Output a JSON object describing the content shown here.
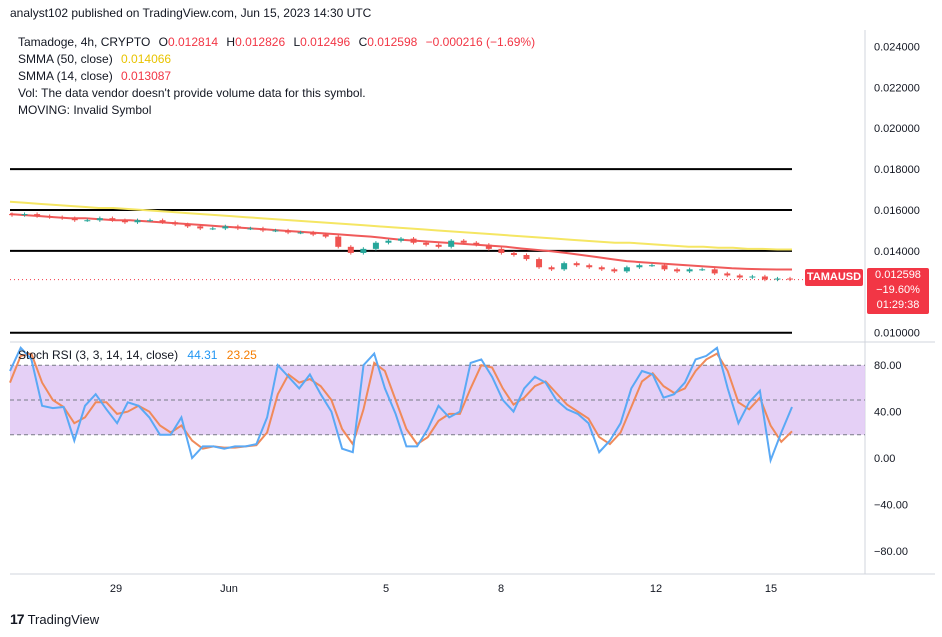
{
  "header": {
    "published": "analyst102 published on TradingView.com, Jun 15, 2023 14:30 UTC"
  },
  "legend": {
    "symbol": "Tamadoge, 4h, CRYPTO",
    "o_label": "O",
    "o": "0.012814",
    "h_label": "H",
    "h": "0.012826",
    "l_label": "L",
    "l": "0.012496",
    "c_label": "C",
    "c": "0.012598",
    "change": "−0.000216 (−1.69%)",
    "sma50_label": "SMMA (50, close)",
    "sma50_value": "0.014066",
    "sma14_label": "SMMA (14, close)",
    "sma14_value": "0.013087",
    "vol_note": "Vol: The data vendor doesn't provide volume data for this symbol.",
    "moving_note": "MOVING: Invalid Symbol"
  },
  "price_tag": {
    "symbol": "TAMAUSD",
    "price": "0.012598",
    "change_pct": "−19.60%",
    "countdown": "01:29:38"
  },
  "rsi_legend": {
    "label": "Stoch RSI (3, 3, 14, 14, close)",
    "k": "44.31",
    "d": "23.25"
  },
  "footer": {
    "brand": "TradingView",
    "logo": "17"
  },
  "colors": {
    "sma50": "#f5e663",
    "sma14": "#f05a5a",
    "up": "#26a69a",
    "down": "#ef5350",
    "stoch_k": "#5aa9f5",
    "stoch_d": "#f08a5a",
    "band": "#e1c8f5"
  },
  "chart_data": [
    {
      "type": "candlestick",
      "y_ticks": [
        "0.024000",
        "0.022000",
        "0.020000",
        "0.018000",
        "0.016000",
        "0.014000",
        "0.010000"
      ],
      "x_ticks": [
        "29",
        "Jun",
        "5",
        "8",
        "12",
        "15"
      ],
      "ylim": [
        0.0094,
        0.0248
      ],
      "horizontal_levels": [
        0.018,
        0.016,
        0.014,
        0.01
      ],
      "close": [
        0.01575,
        0.0158,
        0.0157,
        0.01565,
        0.0156,
        0.0155,
        0.0155,
        0.0156,
        0.0155,
        0.0154,
        0.0155,
        0.0155,
        0.0154,
        0.0153,
        0.0152,
        0.0151,
        0.0151,
        0.0152,
        0.0151,
        0.0151,
        0.015,
        0.015,
        0.0149,
        0.0149,
        0.0148,
        0.0147,
        0.0142,
        0.0139,
        0.0141,
        0.0144,
        0.0145,
        0.0146,
        0.0144,
        0.0143,
        0.0142,
        0.0145,
        0.0144,
        0.0143,
        0.0141,
        0.0139,
        0.0138,
        0.0136,
        0.0132,
        0.0131,
        0.0134,
        0.0133,
        0.0132,
        0.0131,
        0.013,
        0.0132,
        0.0133,
        0.0133,
        0.0131,
        0.013,
        0.0131,
        0.0131,
        0.0129,
        0.0128,
        0.0127,
        0.01275,
        0.0126,
        0.01265,
        0.0126
      ],
      "sma50": [
        0.0164,
        0.01635,
        0.0163,
        0.01625,
        0.0162,
        0.01615,
        0.0161,
        0.0161,
        0.01605,
        0.016,
        0.01595,
        0.0159,
        0.01585,
        0.0158,
        0.01575,
        0.0157,
        0.01565,
        0.0156,
        0.01555,
        0.0155,
        0.01545,
        0.0154,
        0.01535,
        0.0153,
        0.01525,
        0.0152,
        0.01515,
        0.0151,
        0.01505,
        0.015,
        0.01495,
        0.0149,
        0.01485,
        0.0148,
        0.01475,
        0.0147,
        0.01465,
        0.0146,
        0.01455,
        0.0145,
        0.01445,
        0.0144,
        0.0144,
        0.01435,
        0.0143,
        0.01425,
        0.0142,
        0.0142,
        0.01415,
        0.01415,
        0.0141,
        0.0141,
        0.01407,
        0.01407
      ],
      "sma14": [
        0.0158,
        0.01575,
        0.0157,
        0.01565,
        0.0156,
        0.0156,
        0.01555,
        0.0155,
        0.0155,
        0.01545,
        0.0154,
        0.01535,
        0.0153,
        0.01525,
        0.0152,
        0.01515,
        0.0151,
        0.01505,
        0.015,
        0.01495,
        0.0149,
        0.01485,
        0.0148,
        0.01475,
        0.0147,
        0.01462,
        0.01455,
        0.0145,
        0.01445,
        0.0144,
        0.01435,
        0.0143,
        0.01425,
        0.0142,
        0.01412,
        0.01405,
        0.01398,
        0.0139,
        0.0138,
        0.0137,
        0.0136,
        0.0135,
        0.01345,
        0.0134,
        0.01335,
        0.0133,
        0.01325,
        0.0132,
        0.01315,
        0.01312,
        0.0131,
        0.01309,
        0.01309
      ]
    },
    {
      "type": "line",
      "y_ticks": [
        "80.00",
        "40.00",
        "0.00",
        "−40.00",
        "−80.00"
      ],
      "ylim": [
        -100,
        100
      ],
      "band": [
        20,
        80
      ],
      "series": [
        {
          "values": [
            75,
            95,
            85,
            45,
            43,
            44,
            15,
            45,
            55,
            42,
            30,
            48,
            45,
            35,
            20,
            20,
            35,
            0,
            10,
            10,
            8,
            10,
            10,
            12,
            35,
            80,
            70,
            60,
            72,
            55,
            40,
            8,
            5,
            80,
            90,
            60,
            38,
            10,
            10,
            25,
            45,
            35,
            40,
            82,
            85,
            70,
            50,
            40,
            60,
            70,
            65,
            50,
            42,
            38,
            30,
            5,
            15,
            30,
            60,
            75,
            72,
            52,
            55,
            65,
            85,
            88,
            95,
            60,
            30,
            48,
            58,
            -2,
            22,
            44
          ]
        },
        {
          "values": [
            65,
            88,
            90,
            65,
            50,
            44,
            30,
            35,
            48,
            48,
            38,
            40,
            45,
            40,
            28,
            22,
            28,
            15,
            8,
            10,
            9,
            9,
            10,
            11,
            22,
            55,
            72,
            65,
            68,
            62,
            50,
            25,
            12,
            42,
            82,
            75,
            50,
            25,
            12,
            18,
            32,
            38,
            38,
            60,
            80,
            78,
            60,
            46,
            52,
            62,
            66,
            56,
            46,
            40,
            34,
            18,
            12,
            22,
            44,
            66,
            73,
            62,
            56,
            60,
            75,
            85,
            90,
            75,
            48,
            42,
            52,
            28,
            14,
            23
          ]
        }
      ]
    }
  ]
}
